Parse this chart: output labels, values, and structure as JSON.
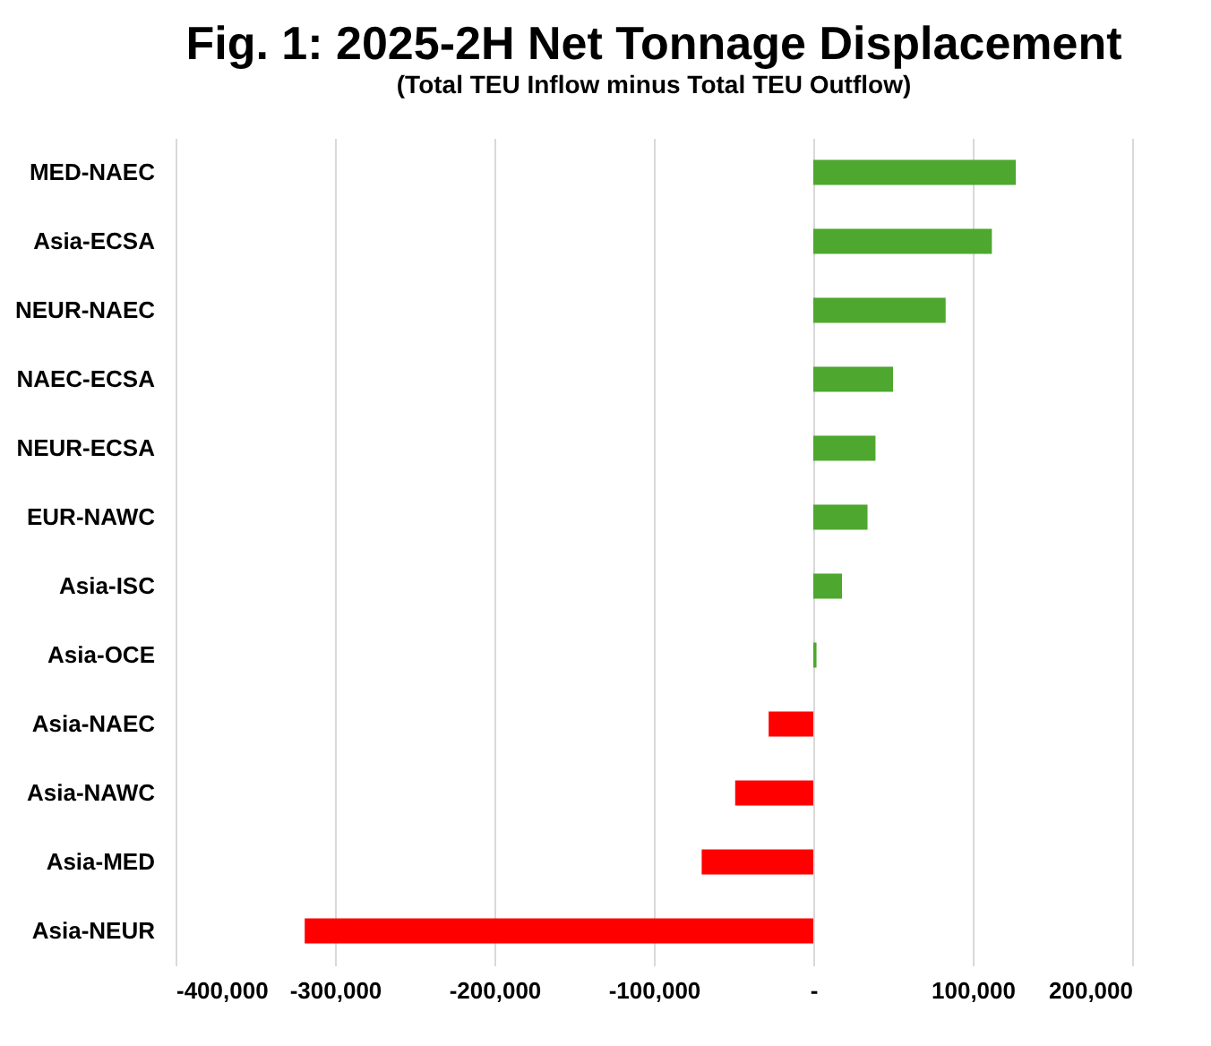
{
  "chart_data": {
    "type": "bar",
    "orientation": "horizontal",
    "title": "Fig. 1: 2025-2H Net Tonnage Displacement",
    "subtitle": "(Total TEU Inflow minus Total TEU Outflow)",
    "categories": [
      "MED-NAEC",
      "Asia-ECSA",
      "NEUR-NAEC",
      "NAEC-ECSA",
      "NEUR-ECSA",
      "EUR-NAWC",
      "Asia-ISC",
      "Asia-OCE",
      "Asia-NAEC",
      "Asia-NAWC",
      "Asia-MED",
      "Asia-NEUR"
    ],
    "values": [
      127000,
      112000,
      83000,
      50000,
      39000,
      34000,
      18000,
      2000,
      -28000,
      -49000,
      -70000,
      -319000
    ],
    "colors": [
      "#4ea72e",
      "#4ea72e",
      "#4ea72e",
      "#4ea72e",
      "#4ea72e",
      "#4ea72e",
      "#4ea72e",
      "#4ea72e",
      "#ff0000",
      "#ff0000",
      "#ff0000",
      "#ff0000"
    ],
    "xlim": [
      -400000,
      200000
    ],
    "xticks": [
      {
        "value": -400000,
        "label": "-400,000"
      },
      {
        "value": -300000,
        "label": "-300,000"
      },
      {
        "value": -200000,
        "label": "-200,000"
      },
      {
        "value": -100000,
        "label": "-100,000"
      },
      {
        "value": 0,
        "label": "-"
      },
      {
        "value": 100000,
        "label": "100,000"
      },
      {
        "value": 200000,
        "label": "200,000"
      }
    ],
    "grid": "x"
  }
}
